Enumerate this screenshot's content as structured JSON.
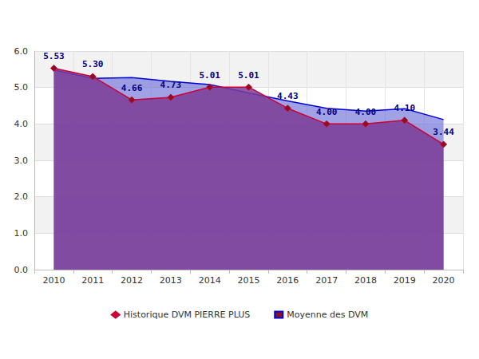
{
  "chart_data": {
    "type": "area",
    "categories": [
      "2010",
      "2011",
      "2012",
      "2013",
      "2014",
      "2015",
      "2016",
      "2017",
      "2018",
      "2019",
      "2020"
    ],
    "series": [
      {
        "name": "Historique DVM PIERRE PLUS",
        "color": "#cc0033",
        "marker": "diamond",
        "data_labels": true,
        "values": [
          5.53,
          5.3,
          4.66,
          4.73,
          5.01,
          5.01,
          4.43,
          4.0,
          4.0,
          4.1,
          3.44
        ],
        "value_labels": [
          "5.53",
          "5.30",
          "4.66",
          "4.73",
          "5.01",
          "5.01",
          "4.43",
          "4.00",
          "4.00",
          "4.10",
          "3.44"
        ]
      },
      {
        "name": "Moyenne des DVM",
        "color": "#0000dd",
        "marker": "none",
        "values": [
          5.48,
          5.25,
          5.27,
          5.17,
          5.08,
          4.85,
          4.63,
          4.43,
          4.35,
          4.42,
          4.12
        ]
      }
    ],
    "ylim": [
      0,
      6
    ],
    "yticks": [
      {
        "value": 0,
        "label": "0.0"
      },
      {
        "value": 1,
        "label": "1.0"
      },
      {
        "value": 2,
        "label": "2.0"
      },
      {
        "value": 3,
        "label": "3.0"
      },
      {
        "value": 4,
        "label": "4.0"
      },
      {
        "value": 5,
        "label": "5.0"
      },
      {
        "value": 6,
        "label": "6.0"
      }
    ],
    "grid": true,
    "legend": "bottom"
  }
}
